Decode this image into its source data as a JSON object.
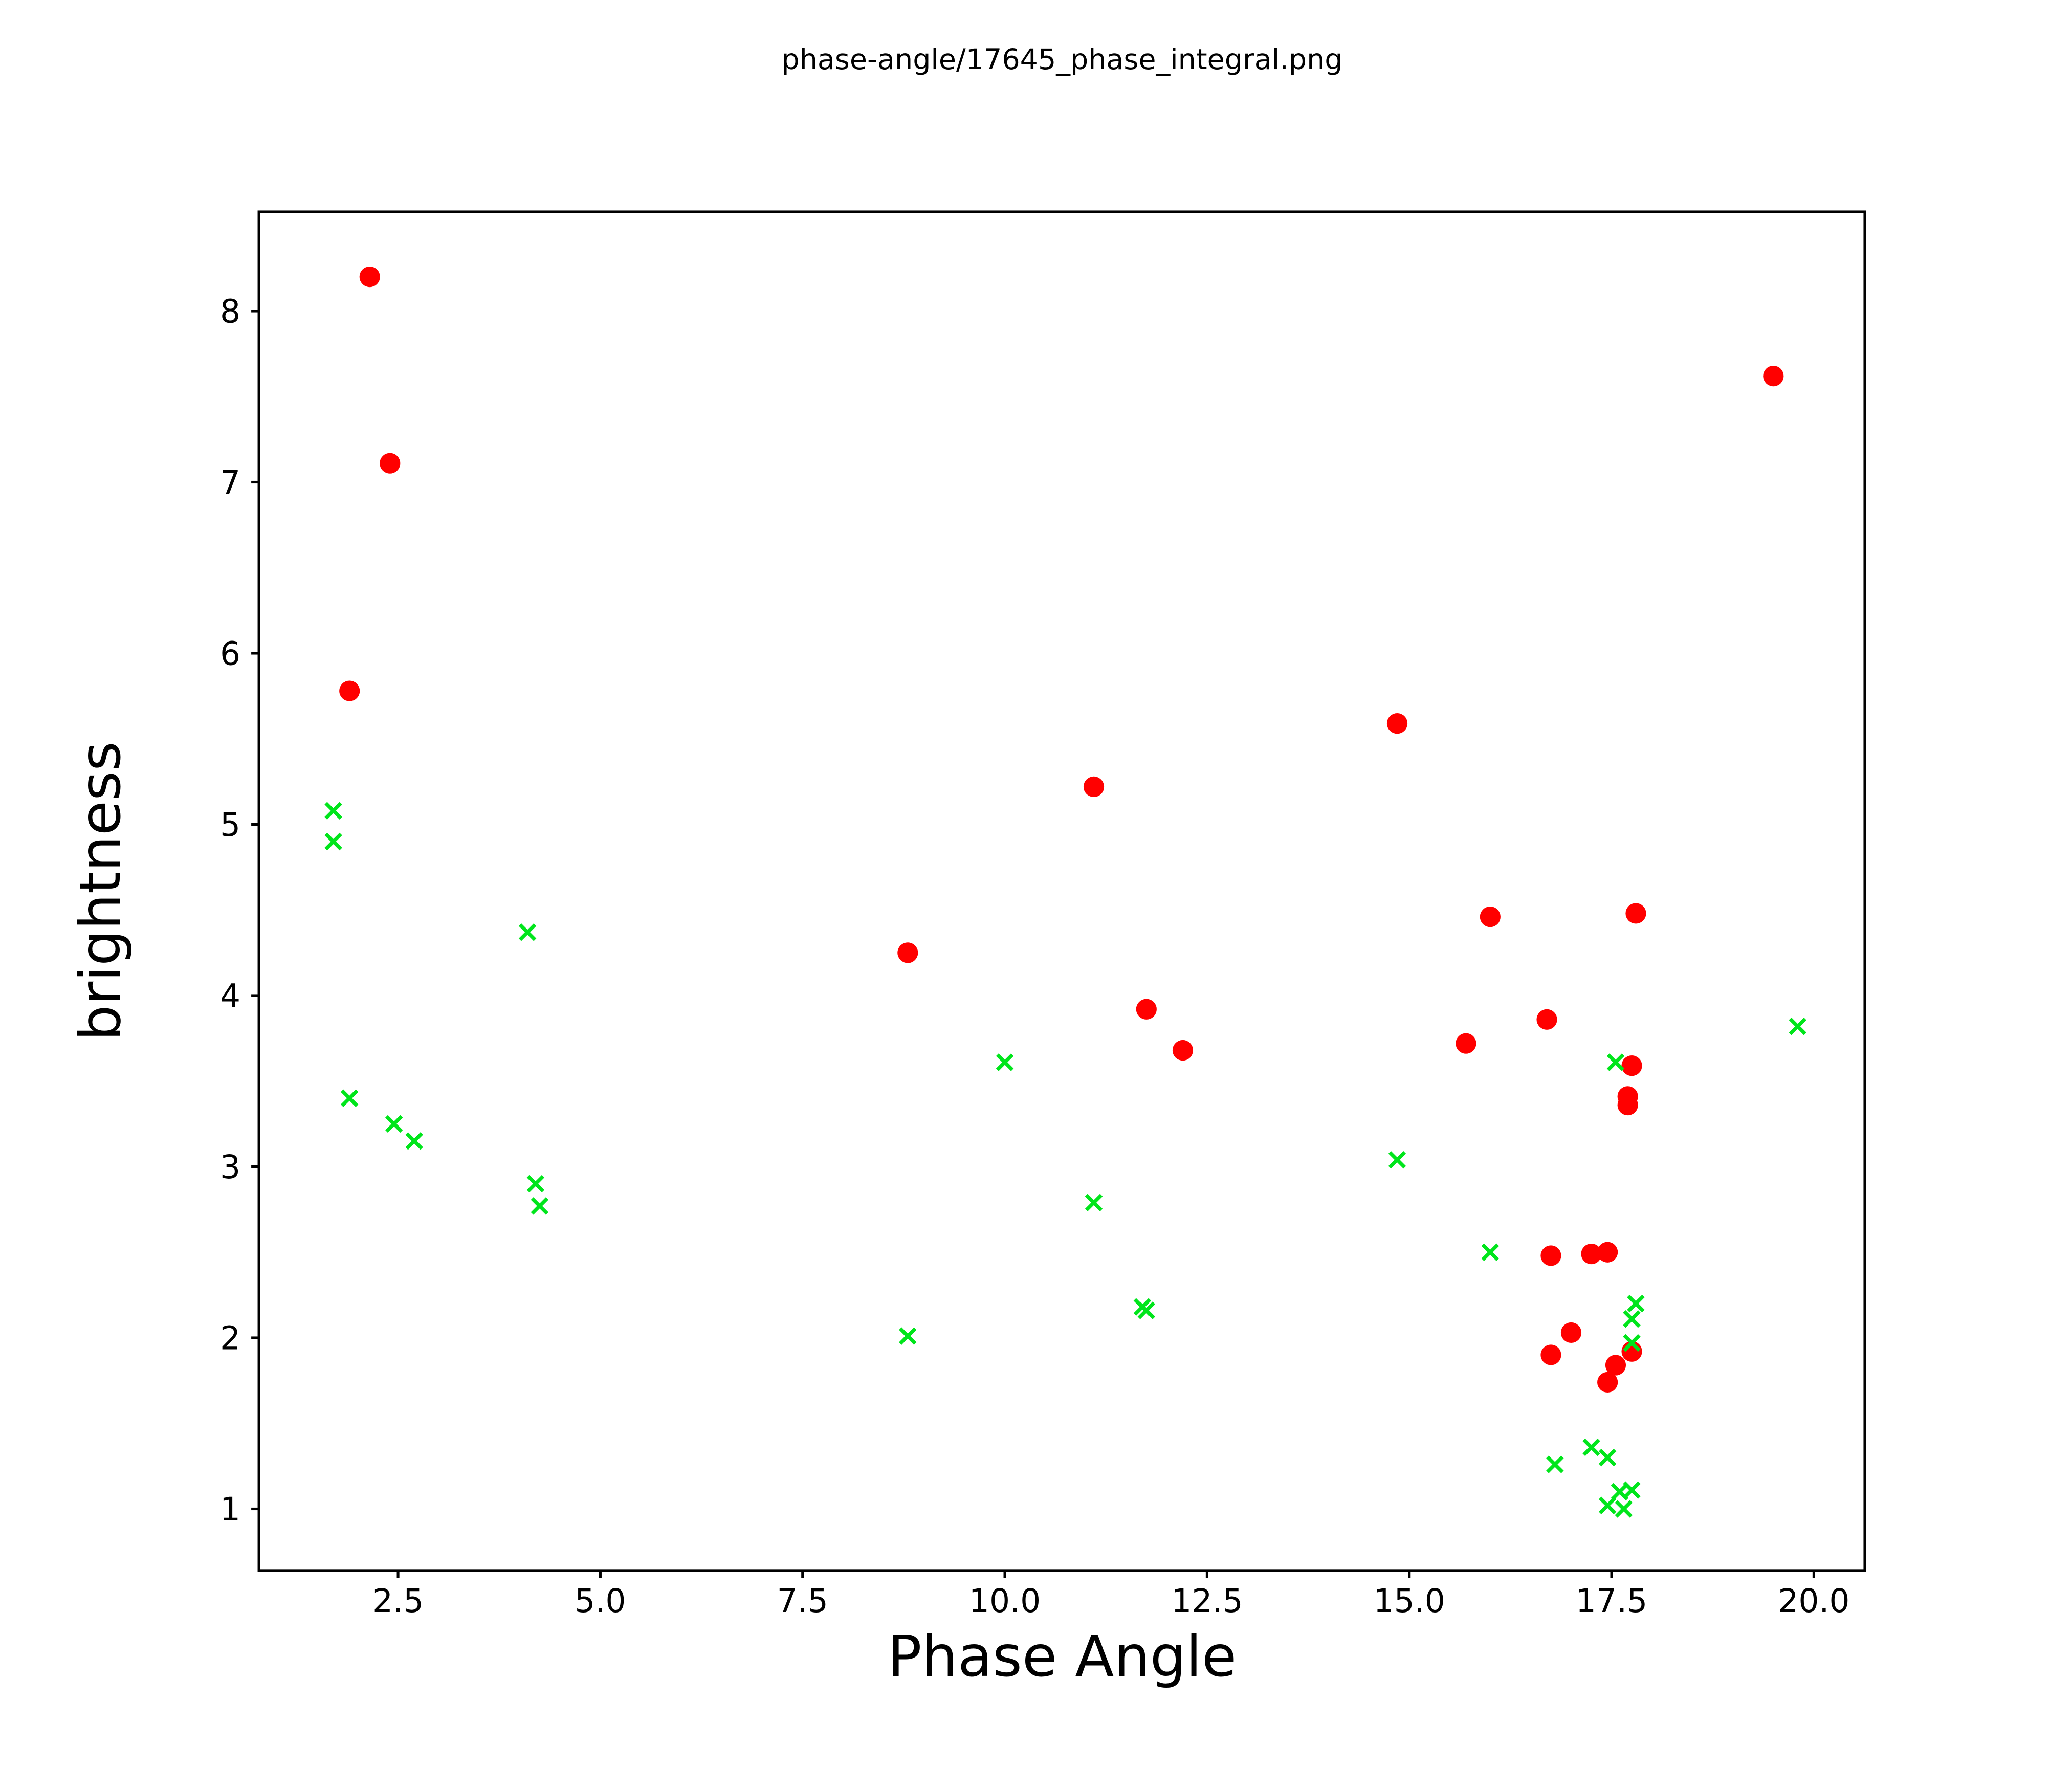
{
  "title": "phase-angle/17645_phase_integral.png",
  "chart_data": {
    "type": "scatter",
    "title": "phase-angle/17645_phase_integral.png",
    "xlabel": "Phase Angle",
    "ylabel": "brightness",
    "xlim": [
      0.78,
      20.63
    ],
    "ylim": [
      0.64,
      8.58
    ],
    "x_ticks": [
      2.5,
      5.0,
      7.5,
      10.0,
      12.5,
      15.0,
      17.5,
      20.0
    ],
    "x_tick_labels": [
      "2.5",
      "5.0",
      "7.5",
      "10.0",
      "12.5",
      "15.0",
      "17.5",
      "20.0"
    ],
    "y_ticks": [
      1,
      2,
      3,
      4,
      5,
      6,
      7,
      8
    ],
    "y_tick_labels": [
      "1",
      "2",
      "3",
      "4",
      "5",
      "6",
      "7",
      "8"
    ],
    "grid": false,
    "legend_position": "none",
    "background_color": "#ffffff",
    "axis_color": "#000000",
    "series": [
      {
        "name": "red-circles",
        "marker": "circle",
        "color": "#ff0000",
        "marker_radius": 6.7,
        "points": [
          [
            2.15,
            8.2
          ],
          [
            2.4,
            7.11
          ],
          [
            1.9,
            5.78
          ],
          [
            8.8,
            4.25
          ],
          [
            11.1,
            5.22
          ],
          [
            11.75,
            3.92
          ],
          [
            12.2,
            3.68
          ],
          [
            14.85,
            5.59
          ],
          [
            15.7,
            3.72
          ],
          [
            16.0,
            4.46
          ],
          [
            16.7,
            3.86
          ],
          [
            17.8,
            4.48
          ],
          [
            17.75,
            3.59
          ],
          [
            17.7,
            3.41
          ],
          [
            17.7,
            3.36
          ],
          [
            16.75,
            2.48
          ],
          [
            17.25,
            2.49
          ],
          [
            17.45,
            2.5
          ],
          [
            17.0,
            2.03
          ],
          [
            16.75,
            1.9
          ],
          [
            17.75,
            1.92
          ],
          [
            17.55,
            1.84
          ],
          [
            17.45,
            1.74
          ],
          [
            19.5,
            7.62
          ]
        ]
      },
      {
        "name": "green-crosses",
        "marker": "x",
        "color": "#00e51b",
        "marker_half_size": 4.9,
        "marker_stroke": 2.4,
        "points": [
          [
            1.7,
            5.08
          ],
          [
            1.7,
            4.9
          ],
          [
            1.9,
            3.4
          ],
          [
            2.45,
            3.25
          ],
          [
            2.7,
            3.15
          ],
          [
            4.1,
            4.37
          ],
          [
            4.2,
            2.9
          ],
          [
            4.25,
            2.77
          ],
          [
            8.8,
            2.01
          ],
          [
            10.0,
            3.61
          ],
          [
            11.1,
            2.79
          ],
          [
            11.7,
            2.18
          ],
          [
            11.75,
            2.16
          ],
          [
            14.85,
            3.04
          ],
          [
            16.0,
            2.5
          ],
          [
            17.55,
            3.61
          ],
          [
            17.8,
            2.2
          ],
          [
            17.75,
            2.11
          ],
          [
            17.75,
            1.97
          ],
          [
            16.8,
            1.26
          ],
          [
            17.25,
            1.36
          ],
          [
            17.45,
            1.3
          ],
          [
            17.6,
            1.1
          ],
          [
            17.75,
            1.11
          ],
          [
            17.45,
            1.02
          ],
          [
            17.65,
            1.0
          ],
          [
            19.8,
            3.82
          ]
        ]
      }
    ]
  }
}
